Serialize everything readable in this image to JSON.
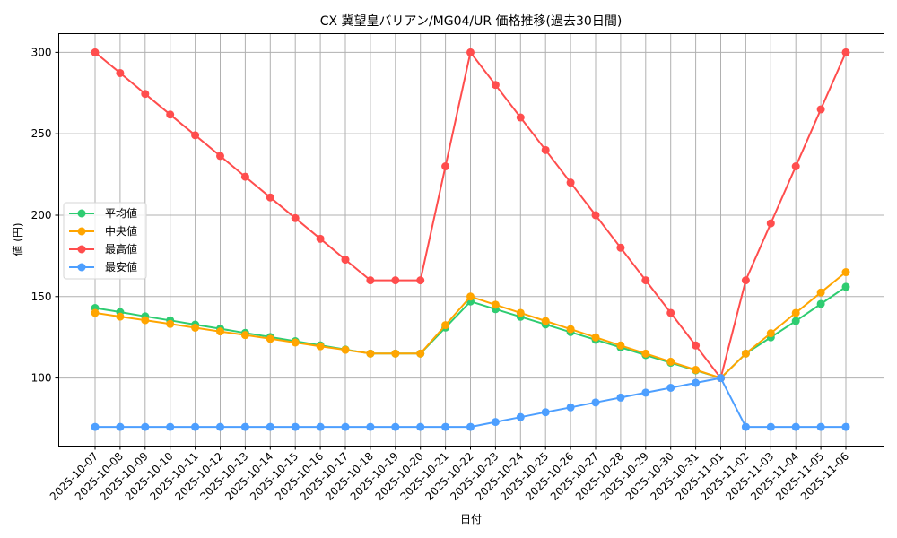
{
  "chart_data": {
    "type": "line",
    "title": "CX 冀望皇バリアン/MG04/UR 価格推移(過去30日間)",
    "xlabel": "日付",
    "ylabel": "値 (円)",
    "ylim": [
      58.2,
      311.5
    ],
    "yticks": [
      100,
      150,
      200,
      250,
      300
    ],
    "grid": true,
    "legend_position": "center left",
    "categories": [
      "2025-10-07",
      "2025-10-08",
      "2025-10-09",
      "2025-10-10",
      "2025-10-11",
      "2025-10-12",
      "2025-10-13",
      "2025-10-14",
      "2025-10-15",
      "2025-10-16",
      "2025-10-17",
      "2025-10-18",
      "2025-10-19",
      "2025-10-20",
      "2025-10-21",
      "2025-10-22",
      "2025-10-23",
      "2025-10-24",
      "2025-10-25",
      "2025-10-26",
      "2025-10-27",
      "2025-10-28",
      "2025-10-29",
      "2025-10-30",
      "2025-10-31",
      "2025-11-01",
      "2025-11-02",
      "2025-11-03",
      "2025-11-04",
      "2025-11-05",
      "2025-11-06"
    ],
    "series": [
      {
        "name": "平均値",
        "color": "#2ecc71",
        "values": [
          143,
          140.5,
          137.9,
          135.4,
          132.8,
          130.3,
          127.7,
          125.2,
          122.6,
          120.1,
          117.5,
          115,
          115,
          115,
          131,
          147,
          142.3,
          137.6,
          132.9,
          128.2,
          123.5,
          118.8,
          114.1,
          109.4,
          104.7,
          100,
          115,
          125,
          135,
          145.5,
          156
        ]
      },
      {
        "name": "中央値",
        "color": "#ffa500",
        "values": [
          140,
          137.7,
          135.5,
          133.2,
          130.9,
          128.6,
          126.4,
          124.1,
          121.8,
          119.5,
          117.3,
          115,
          115,
          115,
          132.5,
          150,
          145,
          140,
          135,
          130,
          125,
          120,
          115,
          110,
          105,
          100,
          115,
          127.5,
          140,
          152.5,
          165
        ]
      },
      {
        "name": "最高値",
        "color": "#ff4d4d",
        "values": [
          300,
          287.3,
          274.5,
          261.8,
          249.1,
          236.4,
          223.6,
          210.9,
          198.2,
          185.5,
          172.7,
          160,
          160,
          160,
          230,
          300,
          280,
          260,
          240,
          220,
          200,
          180,
          160,
          140,
          120,
          100,
          160,
          195,
          230,
          265,
          300
        ]
      },
      {
        "name": "最安値",
        "color": "#4d9fff",
        "values": [
          70,
          70,
          70,
          70,
          70,
          70,
          70,
          70,
          70,
          70,
          70,
          70,
          70,
          70,
          70,
          70,
          73,
          76,
          79,
          82,
          85,
          88,
          91,
          94,
          97,
          100,
          70,
          70,
          70,
          70,
          70
        ]
      }
    ]
  }
}
